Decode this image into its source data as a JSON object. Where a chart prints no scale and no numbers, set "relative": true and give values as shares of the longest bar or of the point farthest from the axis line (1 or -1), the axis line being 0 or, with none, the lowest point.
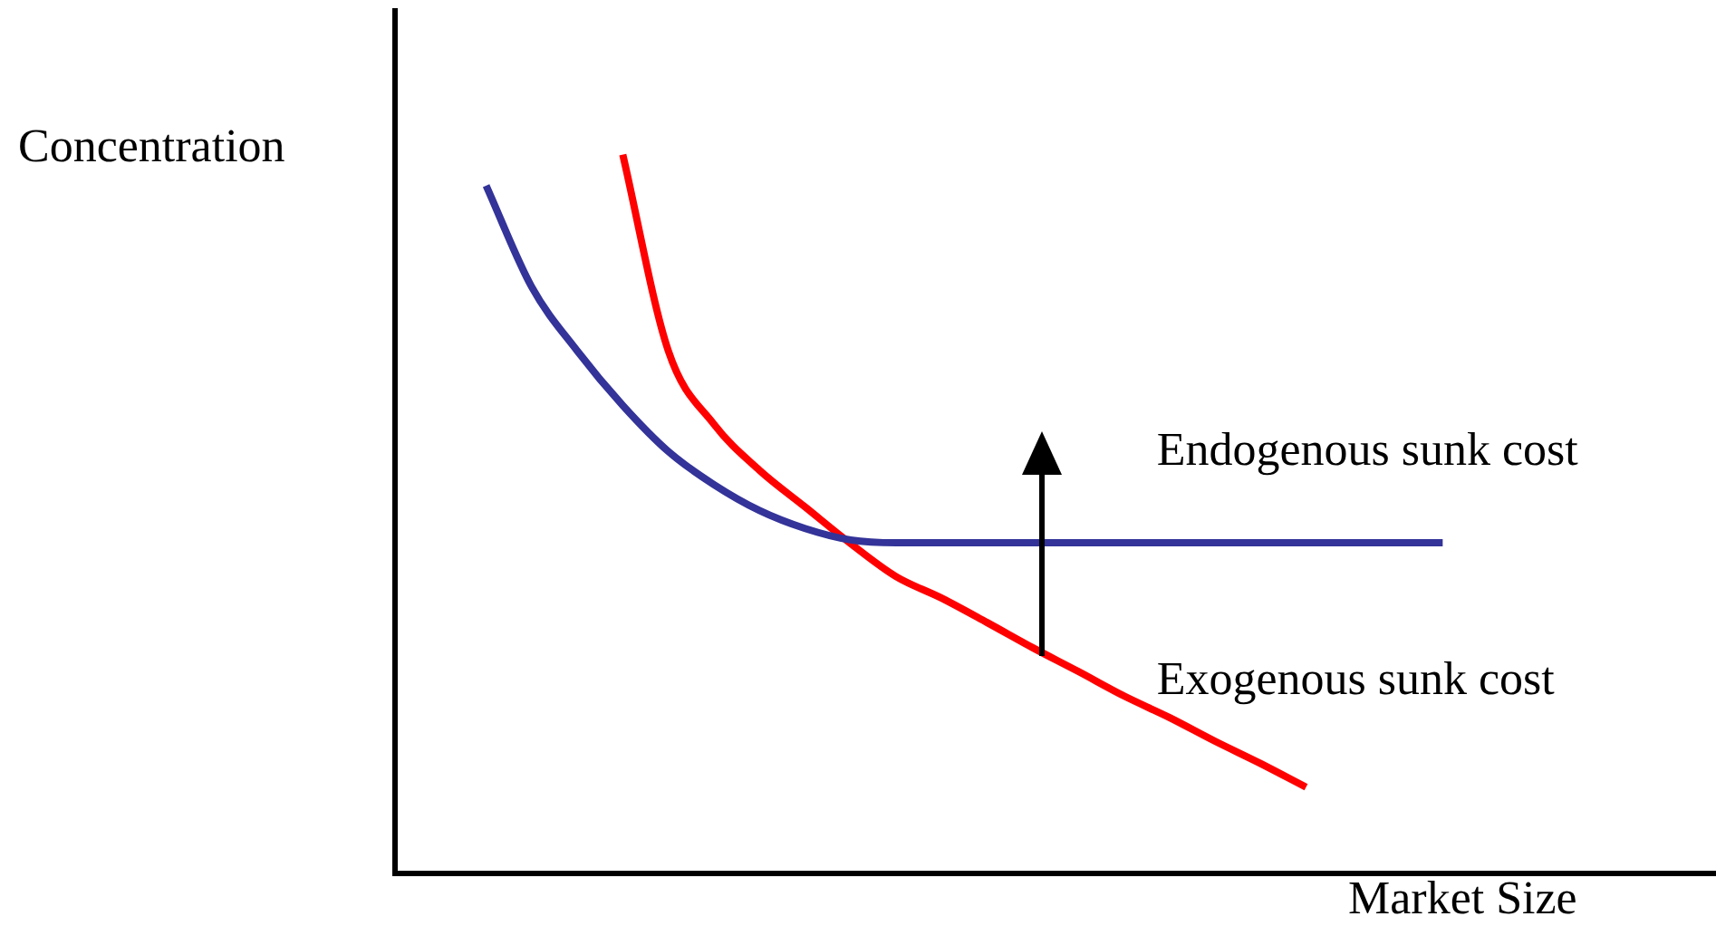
{
  "chart_data": {
    "type": "line",
    "relative": true,
    "xlabel": "Market Size",
    "ylabel": "Concentration",
    "legend": false,
    "grid": false,
    "marker": "none",
    "line_style": "solid",
    "tick_labels": false,
    "categories": [
      null,
      null,
      null,
      null,
      null,
      null,
      null,
      null,
      null,
      null,
      null,
      null,
      null,
      null,
      null,
      null,
      null,
      null,
      null,
      null,
      null,
      null,
      null,
      null,
      null,
      null,
      null,
      null,
      null,
      null
    ],
    "series": [
      {
        "name": "Endogenous sunk cost",
        "color": "#333399",
        "values": [
          null,
          null,
          0.957,
          0.816,
          0.727,
          0.651,
          0.587,
          0.541,
          0.505,
          0.48,
          0.464,
          0.46,
          0.46,
          0.46,
          0.46,
          0.46,
          0.46,
          0.46,
          0.46,
          0.46,
          0.46,
          0.46,
          0.46,
          0.46,
          null,
          null,
          null,
          null,
          null,
          null
        ]
      },
      {
        "name": "Exogenous sunk cost",
        "color": "#ff0000",
        "values": [
          null,
          null,
          null,
          null,
          null,
          1,
          0.727,
          0.625,
          0.561,
          0.51,
          0.459,
          0.413,
          0.383,
          0.349,
          0.314,
          0.281,
          0.247,
          0.217,
          0.184,
          0.153,
          0.12,
          null,
          null,
          null,
          null,
          null,
          null,
          null,
          null,
          null
        ]
      }
    ]
  }
}
